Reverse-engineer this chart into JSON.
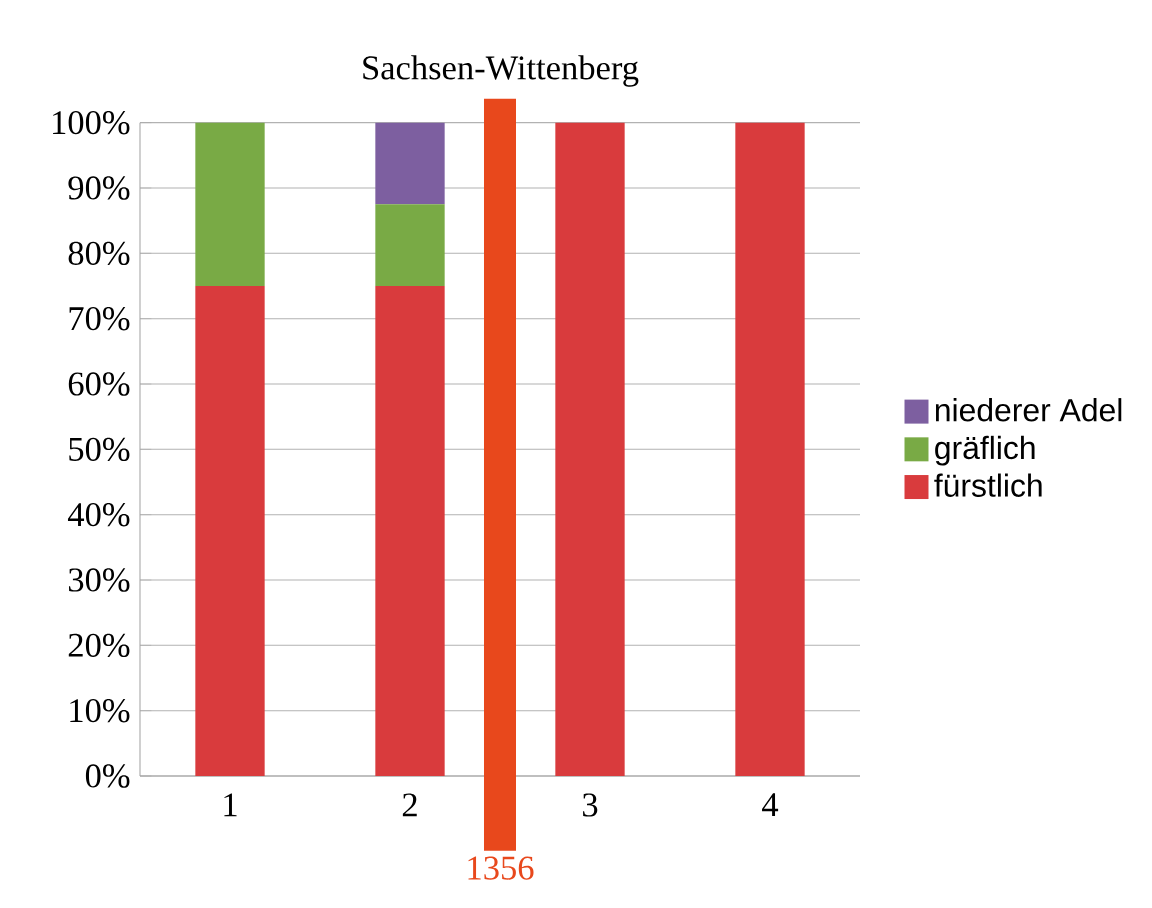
{
  "chart_data": {
    "type": "bar",
    "stacked": true,
    "title": "Sachsen-Wittenberg",
    "x": [
      1,
      2,
      3,
      4
    ],
    "xlim": [
      0.5,
      4.5
    ],
    "xticks": [
      1,
      2,
      3,
      4
    ],
    "ylim": [
      0,
      100
    ],
    "yticks": [
      {
        "value": 0,
        "label": "0%"
      },
      {
        "value": 10,
        "label": "10%"
      },
      {
        "value": 20,
        "label": "20%"
      },
      {
        "value": 30,
        "label": "30%"
      },
      {
        "value": 40,
        "label": "40%"
      },
      {
        "value": 50,
        "label": "50%"
      },
      {
        "value": 60,
        "label": "60%"
      },
      {
        "value": 70,
        "label": "70%"
      },
      {
        "value": 80,
        "label": "80%"
      },
      {
        "value": 90,
        "label": "90%"
      },
      {
        "value": 100,
        "label": "100%"
      }
    ],
    "grid": "y",
    "legend": "right",
    "series": [
      {
        "name": "fürstlich",
        "color": "#d93b3d",
        "values": [
          75,
          75,
          100,
          100
        ]
      },
      {
        "name": "gräflich",
        "color": "#79aa45",
        "values": [
          25,
          12.5,
          0,
          0
        ]
      },
      {
        "name": "niederer Adel",
        "color": "#7d5fa0",
        "values": [
          0,
          12.5,
          0,
          0
        ]
      }
    ],
    "ref_lines": [
      {
        "axis": "x",
        "value": 2.5,
        "color": "#e8481c"
      }
    ],
    "annotations": [
      "1356"
    ]
  }
}
